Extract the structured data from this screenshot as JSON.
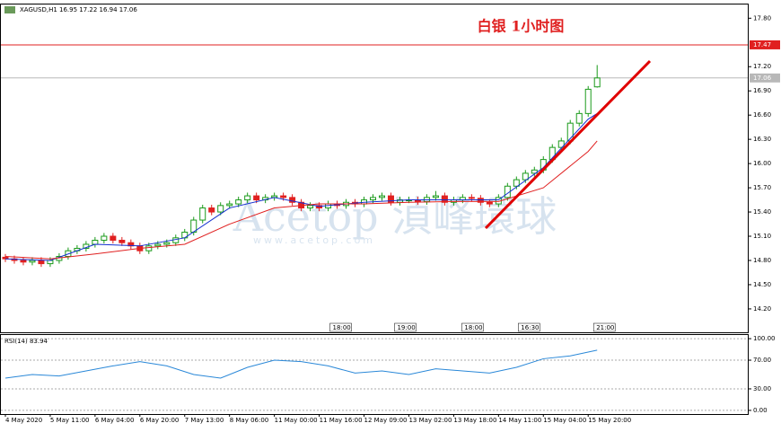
{
  "chart_data": [
    {
      "type": "candlestick",
      "title": "白银 1小时图",
      "symbol_label": "XAGUSD,H1 16.95 17.22 16.94 17.06",
      "watermark": [
        "Acetop 湞峰環球",
        "www.acetop.com"
      ],
      "up_color": "#1a9a1a",
      "down_color": "#e02020",
      "x": [
        0,
        1,
        2,
        3,
        4,
        5,
        6,
        7,
        8,
        9,
        10,
        11,
        12,
        13,
        14,
        15,
        16,
        17,
        18,
        19,
        20,
        21,
        22,
        23,
        24,
        25,
        26,
        27,
        28,
        29,
        30,
        31,
        32,
        33,
        34,
        35,
        36,
        37,
        38,
        39,
        40,
        41,
        42,
        43,
        44,
        45,
        46,
        47,
        48,
        49,
        50,
        51,
        52,
        53,
        54,
        55,
        56,
        57,
        58,
        59,
        60,
        61,
        62,
        63,
        64,
        65,
        66
      ],
      "open": [
        14.84,
        14.82,
        14.8,
        14.78,
        14.8,
        14.76,
        14.8,
        14.85,
        14.92,
        14.95,
        15.0,
        15.05,
        15.1,
        15.05,
        15.02,
        14.98,
        14.92,
        14.98,
        15.0,
        15.02,
        15.08,
        15.15,
        15.3,
        15.45,
        15.4,
        15.48,
        15.5,
        15.55,
        15.6,
        15.55,
        15.58,
        15.6,
        15.58,
        15.52,
        15.45,
        15.48,
        15.45,
        15.5,
        15.48,
        15.52,
        15.5,
        15.55,
        15.58,
        15.6,
        15.52,
        15.55,
        15.55,
        15.53,
        15.58,
        15.6,
        15.52,
        15.55,
        15.58,
        15.57,
        15.52,
        15.5,
        15.58,
        15.72,
        15.8,
        15.88,
        15.92,
        16.05,
        16.2,
        16.28,
        16.5,
        16.62,
        16.95
      ],
      "high": [
        14.88,
        14.86,
        14.84,
        14.84,
        14.84,
        14.84,
        14.89,
        14.96,
        14.99,
        15.04,
        15.09,
        15.14,
        15.14,
        15.09,
        15.06,
        15.02,
        15.02,
        15.04,
        15.06,
        15.12,
        15.19,
        15.34,
        15.49,
        15.49,
        15.52,
        15.54,
        15.59,
        15.64,
        15.64,
        15.62,
        15.64,
        15.64,
        15.62,
        15.56,
        15.52,
        15.52,
        15.54,
        15.54,
        15.56,
        15.56,
        15.59,
        15.62,
        15.64,
        15.64,
        15.59,
        15.59,
        15.59,
        15.62,
        15.66,
        15.64,
        15.59,
        15.62,
        15.62,
        15.61,
        15.56,
        15.62,
        15.76,
        15.84,
        15.92,
        15.96,
        16.09,
        16.24,
        16.32,
        16.54,
        16.66,
        16.96,
        17.22
      ],
      "low": [
        14.78,
        14.76,
        14.74,
        14.74,
        14.72,
        14.72,
        14.76,
        14.81,
        14.88,
        14.91,
        14.96,
        15.01,
        15.01,
        14.98,
        14.94,
        14.88,
        14.88,
        14.94,
        14.96,
        14.98,
        15.04,
        15.11,
        15.26,
        15.36,
        15.36,
        15.44,
        15.46,
        15.51,
        15.51,
        15.51,
        15.54,
        15.54,
        15.48,
        15.41,
        15.41,
        15.41,
        15.41,
        15.44,
        15.44,
        15.46,
        15.46,
        15.51,
        15.54,
        15.48,
        15.48,
        15.51,
        15.49,
        15.49,
        15.54,
        15.48,
        15.48,
        15.51,
        15.53,
        15.48,
        15.46,
        15.46,
        15.54,
        15.68,
        15.76,
        15.84,
        15.88,
        16.01,
        16.16,
        16.24,
        16.46,
        16.58,
        16.94
      ],
      "close": [
        14.82,
        14.8,
        14.78,
        14.8,
        14.76,
        14.8,
        14.85,
        14.92,
        14.95,
        15.0,
        15.05,
        15.1,
        15.05,
        15.02,
        14.98,
        14.92,
        14.98,
        15.0,
        15.02,
        15.08,
        15.15,
        15.3,
        15.45,
        15.4,
        15.48,
        15.5,
        15.55,
        15.6,
        15.55,
        15.58,
        15.6,
        15.58,
        15.52,
        15.45,
        15.48,
        15.45,
        15.5,
        15.48,
        15.52,
        15.5,
        15.55,
        15.58,
        15.6,
        15.52,
        15.55,
        15.55,
        15.53,
        15.58,
        15.6,
        15.52,
        15.55,
        15.58,
        15.57,
        15.52,
        15.5,
        15.58,
        15.72,
        15.8,
        15.88,
        15.92,
        16.05,
        16.2,
        16.28,
        16.5,
        16.62,
        16.92,
        17.06
      ],
      "lines": [
        {
          "color": "#1530d0",
          "x": [
            0,
            5,
            10,
            15,
            20,
            25,
            30,
            35,
            40,
            45,
            50,
            55,
            60,
            65,
            66
          ],
          "values": [
            14.82,
            14.8,
            15.0,
            14.98,
            15.08,
            15.45,
            15.58,
            15.47,
            15.52,
            15.55,
            15.55,
            15.55,
            15.95,
            16.55,
            16.62
          ]
        },
        {
          "color": "#e02020",
          "x": [
            0,
            5,
            10,
            15,
            20,
            25,
            30,
            35,
            40,
            45,
            50,
            55,
            60,
            65,
            66
          ],
          "values": [
            14.85,
            14.82,
            14.88,
            14.95,
            15.0,
            15.25,
            15.45,
            15.5,
            15.5,
            15.52,
            15.53,
            15.53,
            15.7,
            16.15,
            16.28
          ]
        }
      ],
      "hlines": [
        {
          "value": 17.47,
          "label": "17.47",
          "color": "#e02020"
        },
        {
          "value": 17.06,
          "label": "17.06",
          "color": "#b8b8b8"
        }
      ],
      "time_markers": [
        {
          "value": 36.3,
          "label": "18:00"
        },
        {
          "value": 43.5,
          "label": "19:00"
        },
        {
          "value": 51,
          "label": "18:00"
        },
        {
          "value": 57.3,
          "label": "16:30"
        },
        {
          "value": 65.7,
          "label": "21:00"
        }
      ],
      "xlim": [
        -0.5,
        82.8
      ],
      "ylim": [
        13.91,
        17.97
      ],
      "xticks": [
        {
          "value": 0,
          "label": "4 May 2020"
        },
        {
          "value": 5,
          "label": "5 May 11:00"
        },
        {
          "value": 10,
          "label": "6 May 04:00"
        },
        {
          "value": 15,
          "label": "6 May 20:00"
        },
        {
          "value": 20,
          "label": "7 May 13:00"
        },
        {
          "value": 25,
          "label": "8 May 06:00"
        },
        {
          "value": 30,
          "label": "11 May 00:00"
        },
        {
          "value": 35,
          "label": "11 May 16:00"
        },
        {
          "value": 40,
          "label": "12 May 09:00"
        },
        {
          "value": 45,
          "label": "13 May 02:00"
        },
        {
          "value": 50,
          "label": "13 May 18:00"
        },
        {
          "value": 55,
          "label": "14 May 11:00"
        },
        {
          "value": 60,
          "label": "15 May 04:00"
        },
        {
          "value": 65,
          "label": "15 May 20:00"
        }
      ],
      "yticks": [
        {
          "value": 14.2,
          "label": "14.20"
        },
        {
          "value": 14.5,
          "label": "14.50"
        },
        {
          "value": 14.8,
          "label": "14.80"
        },
        {
          "value": 15.1,
          "label": "15.10"
        },
        {
          "value": 15.4,
          "label": "15.40"
        },
        {
          "value": 15.7,
          "label": "15.70"
        },
        {
          "value": 16,
          "label": "16.00"
        },
        {
          "value": 16.3,
          "label": "16.30"
        },
        {
          "value": 16.6,
          "label": "16.60"
        },
        {
          "value": 16.9,
          "label": "16.90"
        },
        {
          "value": 17.2,
          "label": "17.20"
        },
        {
          "value": 17.8,
          "label": "17.80"
        }
      ]
    },
    {
      "type": "line",
      "title": "RSI(14) 83.94",
      "color": "#2a88d8",
      "x": [
        0,
        3,
        6,
        9,
        12,
        15,
        18,
        21,
        24,
        27,
        30,
        33,
        36,
        39,
        42,
        45,
        48,
        51,
        54,
        57,
        60,
        63,
        66
      ],
      "values": [
        45,
        50,
        48,
        55,
        62,
        68,
        62,
        50,
        45,
        60,
        70,
        68,
        62,
        52,
        55,
        50,
        58,
        55,
        52,
        60,
        72,
        76,
        83.94
      ],
      "xlim": [
        -0.5,
        82.8
      ],
      "ylim": [
        -5.1,
        105.1
      ],
      "yticks": [
        {
          "value": 0,
          "label": "0.00"
        },
        {
          "value": 30,
          "label": "30.00"
        },
        {
          "value": 70,
          "label": "70.00"
        },
        {
          "value": 100,
          "label": "100.00"
        }
      ]
    }
  ]
}
